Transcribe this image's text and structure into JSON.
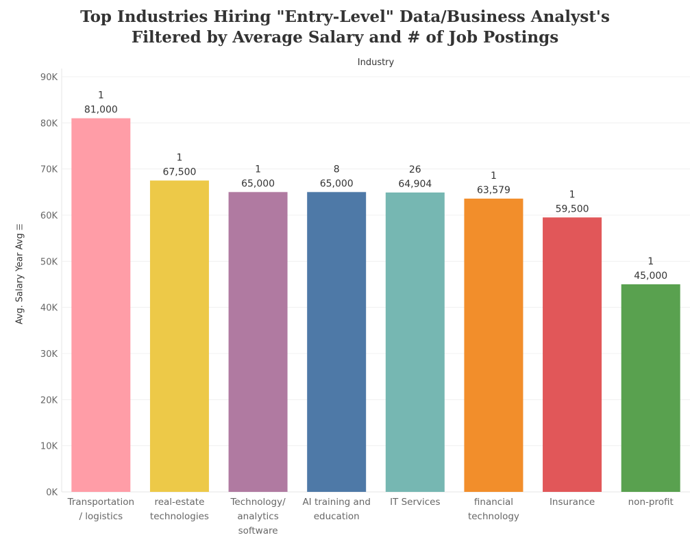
{
  "title_line1": "Top Industries Hiring \"Entry-Level\" Data/Business Analyst's",
  "title_line2": "Filtered by Average Salary and # of Job Postings",
  "column_header": "Industry",
  "sort_icon": "sort-descending-icon",
  "chart_data": {
    "type": "bar",
    "title": "Top Industries Hiring \"Entry-Level\" Data/Business Analyst's Filtered by Average Salary and # of Job Postings",
    "xlabel": "Industry",
    "ylabel": "Avg. Salary Year Avg",
    "ylim": [
      0,
      90000
    ],
    "yticks": [
      0,
      10000,
      20000,
      30000,
      40000,
      50000,
      60000,
      70000,
      80000,
      90000
    ],
    "ytick_labels": [
      "0K",
      "10K",
      "20K",
      "30K",
      "40K",
      "50K",
      "60K",
      "70K",
      "80K",
      "90K"
    ],
    "grid": true,
    "categories": [
      [
        "Transportation",
        "/ logistics"
      ],
      [
        "real-estate",
        "technologies"
      ],
      [
        "Technology/",
        "analytics",
        "software"
      ],
      [
        "AI training and",
        "education"
      ],
      [
        "IT Services"
      ],
      [
        "financial",
        "technology"
      ],
      [
        "Insurance"
      ],
      [
        "non-profit"
      ]
    ],
    "values": [
      81000,
      67500,
      65000,
      65000,
      64904,
      63579,
      59500,
      45000
    ],
    "value_labels": [
      "81,000",
      "67,500",
      "65,000",
      "65,000",
      "64,904",
      "63,579",
      "59,500",
      "45,000"
    ],
    "job_postings": [
      1,
      1,
      1,
      8,
      26,
      1,
      1,
      1
    ],
    "colors": [
      "#FF9DA7",
      "#EDC948",
      "#B07AA1",
      "#4E79A7",
      "#76B7B2",
      "#F28E2B",
      "#E15759",
      "#59A14F"
    ]
  }
}
